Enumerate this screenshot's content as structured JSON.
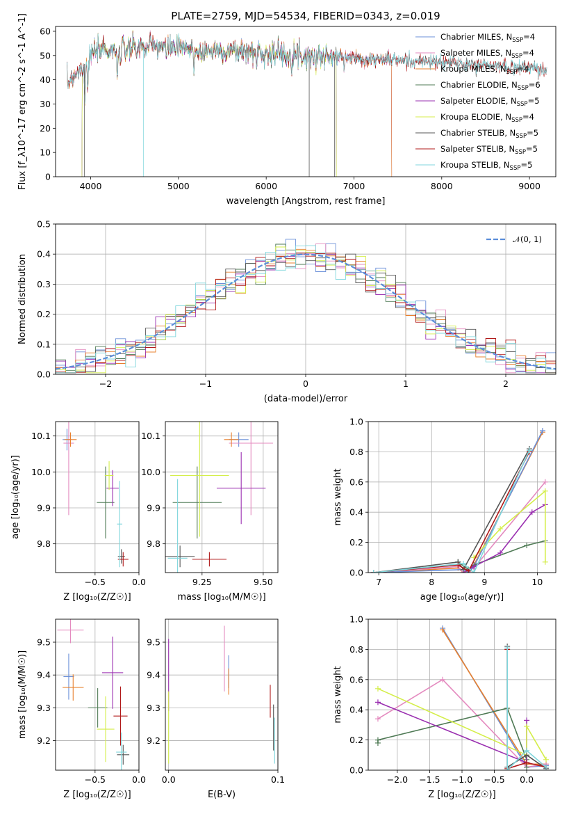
{
  "figure_title": "PLATE=2759, MJD=54534, FIBERID=0343, z=0.019",
  "colors": {
    "chabrier_miles": "#6a8fd8",
    "salpeter_miles": "#e48abf",
    "kroupa_miles": "#e8802e",
    "chabrier_elodie": "#4f7a55",
    "salpeter_elodie": "#9a2fb0",
    "kroupa_elodie": "#d4ee4a",
    "chabrier_stelib": "#555555",
    "salpeter_stelib": "#b01818",
    "kroupa_stelib": "#7fd6dc",
    "normal": "#5b8dd9"
  },
  "chart_data": [
    {
      "id": "spectrum",
      "type": "line",
      "title": "PLATE=2759, MJD=54534, FIBERID=0343, z=0.019",
      "xlabel": "wavelength [Angstrom, rest frame]",
      "ylabel": "Flux [f_λ10^-17 erg cm^-2 s^-1 A^-1]",
      "xlim": [
        3600,
        9300
      ],
      "ylim": [
        0,
        62
      ],
      "xticks": [
        "4000",
        "5000",
        "6000",
        "7000",
        "8000",
        "9000"
      ],
      "yticks": [
        "0",
        "10",
        "20",
        "30",
        "40",
        "50",
        "60"
      ],
      "grid": false,
      "legend_position": "top-right",
      "legend": [
        {
          "base": "Chabrier MILES, N",
          "sub": "SSP",
          "tail": "=4",
          "color_key": "chabrier_miles"
        },
        {
          "base": "Salpeter MILES, N",
          "sub": "SSP",
          "tail": "=4",
          "color_key": "salpeter_miles"
        },
        {
          "base": "Kroupa MILES, N",
          "sub": "SSP",
          "tail": "=4",
          "color_key": "kroupa_miles"
        },
        {
          "base": "Chabrier ELODIE, N",
          "sub": "SSP",
          "tail": "=6",
          "color_key": "chabrier_elodie"
        },
        {
          "base": "Salpeter ELODIE, N",
          "sub": "SSP",
          "tail": "=5",
          "color_key": "salpeter_elodie"
        },
        {
          "base": "Kroupa ELODIE, N",
          "sub": "SSP",
          "tail": "=4",
          "color_key": "kroupa_elodie"
        },
        {
          "base": "Chabrier STELIB, N",
          "sub": "SSP",
          "tail": "=5",
          "color_key": "chabrier_stelib"
        },
        {
          "base": "Salpeter STELIB, N",
          "sub": "SSP",
          "tail": "=5",
          "color_key": "salpeter_stelib"
        },
        {
          "base": "Kroupa STELIB, N",
          "sub": "SSP",
          "tail": "=5",
          "color_key": "kroupa_stelib"
        }
      ],
      "continuum_x": [
        3730,
        3800,
        3900,
        4000,
        4100,
        4300,
        4500,
        4800,
        5200,
        5600,
        6000,
        6500,
        7000,
        7500,
        8000,
        8500,
        9000,
        9200
      ],
      "continuum_y": [
        38,
        42,
        45,
        50,
        53,
        52,
        53,
        54,
        52,
        52,
        51,
        50,
        49,
        48,
        47,
        46,
        45,
        44
      ],
      "series": [
        {
          "color_key": "chabrier_miles",
          "x_range": [
            3730,
            7430
          ]
        },
        {
          "color_key": "salpeter_miles",
          "x_range": [
            3730,
            7430
          ]
        },
        {
          "color_key": "kroupa_miles",
          "x_range": [
            3730,
            7430
          ]
        },
        {
          "color_key": "chabrier_elodie",
          "x_range": [
            3900,
            6800
          ]
        },
        {
          "color_key": "salpeter_elodie",
          "x_range": [
            3900,
            6800
          ]
        },
        {
          "color_key": "kroupa_elodie",
          "x_range": [
            3900,
            6800
          ]
        },
        {
          "color_key": "chabrier_stelib",
          "x_range": [
            3730,
            9200
          ]
        },
        {
          "color_key": "salpeter_stelib",
          "x_range": [
            3730,
            9200
          ]
        },
        {
          "color_key": "kroupa_stelib",
          "x_range": [
            3730,
            9200
          ]
        }
      ]
    },
    {
      "id": "residuals",
      "type": "line",
      "xlabel": "(data-model)/error",
      "ylabel": "Normed distribution",
      "xlim": [
        -2.5,
        2.5
      ],
      "ylim": [
        0,
        0.5
      ],
      "xticks": [
        "−2",
        "−1",
        "0",
        "1",
        "2"
      ],
      "yticks": [
        "0.0",
        "0.1",
        "0.2",
        "0.3",
        "0.4",
        "0.5"
      ],
      "grid": true,
      "legend_position": "top-right",
      "normal_label": "𝒩(0, 1)",
      "bin_width": 0.1
    },
    {
      "id": "age_vs_z",
      "type": "scatter",
      "xlabel": "Z [log₁₀(Z/Z☉)]",
      "ylabel": "age  [log₁₀(age/yr)]",
      "xlim": [
        -0.95,
        0.0
      ],
      "ylim": [
        9.72,
        10.14
      ],
      "xticks": [
        "−0.5",
        "0.0"
      ],
      "ytick_values": [
        9.8,
        9.9,
        10.0,
        10.1
      ],
      "yticks": [
        "9.8",
        "9.9",
        "10.0",
        "10.1"
      ],
      "grid": true,
      "points": [
        {
          "x": -0.82,
          "xerr": 0.05,
          "y": 10.09,
          "yerr": 0.03,
          "color_key": "chabrier_miles"
        },
        {
          "x": -0.8,
          "xerr": 0.06,
          "y": 10.08,
          "yerr": 0.2,
          "color_key": "salpeter_miles"
        },
        {
          "x": -0.78,
          "xerr": 0.07,
          "y": 10.09,
          "yerr": 0.02,
          "color_key": "kroupa_miles"
        },
        {
          "x": -0.38,
          "xerr": 0.1,
          "y": 9.915,
          "yerr": 0.1,
          "color_key": "chabrier_elodie"
        },
        {
          "x": -0.3,
          "xerr": 0.07,
          "y": 9.955,
          "yerr": 0.05,
          "color_key": "salpeter_elodie"
        },
        {
          "x": -0.34,
          "xerr": 0.05,
          "y": 9.99,
          "yerr": 0.04,
          "color_key": "kroupa_elodie"
        },
        {
          "x": -0.2,
          "xerr": 0.04,
          "y": 9.765,
          "yerr": 0.02,
          "color_key": "chabrier_stelib"
        },
        {
          "x": -0.18,
          "xerr": 0.06,
          "y": 9.757,
          "yerr": 0.02,
          "color_key": "salpeter_stelib"
        },
        {
          "x": -0.22,
          "xerr": 0.03,
          "y": 9.855,
          "yerr": 0.12,
          "color_key": "kroupa_stelib"
        }
      ]
    },
    {
      "id": "age_vs_mass",
      "type": "scatter",
      "xlabel": "mass [log₁₀(M/M☉)]",
      "ylabel": "",
      "xlim": [
        9.1,
        9.56
      ],
      "ylim": [
        9.72,
        10.14
      ],
      "xticks": [
        "9.25",
        "9.50"
      ],
      "xtick_values": [
        9.25,
        9.5
      ],
      "ytick_values": [
        9.8,
        9.9,
        10.0,
        10.1
      ],
      "yticks": [
        "9.8",
        "9.9",
        "10.0",
        "10.1"
      ],
      "grid": true,
      "points": [
        {
          "x": 9.4,
          "xerr": 0.04,
          "y": 10.09,
          "yerr": 0.02,
          "color_key": "chabrier_miles"
        },
        {
          "x": 9.45,
          "xerr": 0.09,
          "y": 10.08,
          "yerr": 0.2,
          "color_key": "salpeter_miles"
        },
        {
          "x": 9.37,
          "xerr": 0.03,
          "y": 10.09,
          "yerr": 0.02,
          "color_key": "kroupa_miles"
        },
        {
          "x": 9.23,
          "xerr": 0.1,
          "y": 9.915,
          "yerr": 0.1,
          "color_key": "chabrier_elodie"
        },
        {
          "x": 9.41,
          "xerr": 0.1,
          "y": 9.955,
          "yerr": 0.1,
          "color_key": "salpeter_elodie"
        },
        {
          "x": 9.24,
          "xerr": 0.12,
          "y": 9.99,
          "yerr": 0.17,
          "color_key": "kroupa_elodie"
        },
        {
          "x": 9.16,
          "xerr": 0.06,
          "y": 9.765,
          "yerr": 0.03,
          "color_key": "chabrier_stelib"
        },
        {
          "x": 9.28,
          "xerr": 0.07,
          "y": 9.757,
          "yerr": 0.02,
          "color_key": "salpeter_stelib"
        },
        {
          "x": 9.15,
          "xerr": 0.04,
          "y": 9.76,
          "yerr": 0.22,
          "color_key": "kroupa_stelib"
        }
      ]
    },
    {
      "id": "weight_vs_age",
      "type": "line",
      "xlabel": "age  [log₁₀(age/yr)]",
      "ylabel": "mass weight",
      "xlim": [
        6.8,
        10.35
      ],
      "ylim": [
        0.0,
        1.0
      ],
      "xticks": [
        "7",
        "8",
        "9",
        "10"
      ],
      "xtick_values": [
        7,
        8,
        9,
        10
      ],
      "yticks": [
        "0.0",
        "0.2",
        "0.4",
        "0.6",
        "0.8",
        "1.0"
      ],
      "ytick_values": [
        0.0,
        0.2,
        0.4,
        0.6,
        0.8,
        1.0
      ],
      "grid": true,
      "series": [
        {
          "color_key": "kroupa_miles",
          "x": [
            6.9,
            8.5,
            8.6,
            8.8,
            10.1
          ],
          "y": [
            0.0,
            0.03,
            0.0,
            0.05,
            0.93
          ]
        },
        {
          "color_key": "salpeter_miles",
          "x": [
            6.9,
            8.5,
            8.6,
            8.8,
            10.15
          ],
          "y": [
            0.0,
            0.04,
            0.0,
            0.03,
            0.6
          ]
        },
        {
          "color_key": "chabrier_miles",
          "x": [
            6.9,
            8.6,
            8.7,
            8.8,
            10.1
          ],
          "y": [
            0.0,
            0.02,
            0.0,
            0.04,
            0.94
          ]
        },
        {
          "color_key": "chabrier_elodie",
          "x": [
            8.5,
            8.7,
            8.8,
            9.8,
            10.15
          ],
          "y": [
            0.07,
            0.02,
            0.05,
            0.18,
            0.21
          ]
        },
        {
          "color_key": "salpeter_elodie",
          "x": [
            8.6,
            8.8,
            9.3,
            9.9,
            10.15
          ],
          "y": [
            0.0,
            0.04,
            0.13,
            0.4,
            0.45
          ]
        },
        {
          "color_key": "kroupa_elodie",
          "x": [
            8.8,
            9.3,
            10.15,
            10.15
          ],
          "y": [
            0.1,
            0.29,
            0.54,
            0.07
          ]
        },
        {
          "color_key": "chabrier_stelib",
          "x": [
            6.9,
            8.5,
            8.6,
            9.85
          ],
          "y": [
            0.0,
            0.07,
            0.02,
            0.82
          ]
        },
        {
          "color_key": "salpeter_stelib",
          "x": [
            6.9,
            8.5,
            8.7,
            9.85
          ],
          "y": [
            0.0,
            0.05,
            0.01,
            0.8
          ]
        },
        {
          "color_key": "kroupa_stelib",
          "x": [
            6.9,
            8.6,
            8.8,
            9.85
          ],
          "y": [
            0.0,
            0.06,
            0.0,
            0.81
          ]
        }
      ]
    },
    {
      "id": "mass_vs_z",
      "type": "scatter",
      "xlabel": "Z [log₁₀(Z/Z☉)]",
      "ylabel": "mass [log₁₀(M/M☉)]",
      "xlim": [
        -0.95,
        0.0
      ],
      "ylim": [
        9.11,
        9.57
      ],
      "xticks": [
        "−0.5",
        "0.0"
      ],
      "xtick_values": [
        -0.5,
        0.0
      ],
      "yticks": [
        "9.2",
        "9.3",
        "9.4",
        "9.5"
      ],
      "ytick_values": [
        9.2,
        9.3,
        9.4,
        9.5
      ],
      "grid": true,
      "points": [
        {
          "x": -0.8,
          "xerr": 0.06,
          "y": 9.395,
          "yerr": 0.07,
          "color_key": "chabrier_miles"
        },
        {
          "x": -0.78,
          "xerr": 0.15,
          "y": 9.537,
          "yerr": 0.04,
          "color_key": "salpeter_miles"
        },
        {
          "x": -0.75,
          "xerr": 0.12,
          "y": 9.362,
          "yerr": 0.04,
          "color_key": "kroupa_miles"
        },
        {
          "x": -0.47,
          "xerr": 0.11,
          "y": 9.3,
          "yerr": 0.06,
          "color_key": "chabrier_elodie"
        },
        {
          "x": -0.3,
          "xerr": 0.12,
          "y": 9.407,
          "yerr": 0.11,
          "color_key": "salpeter_elodie"
        },
        {
          "x": -0.38,
          "xerr": 0.1,
          "y": 9.235,
          "yerr": 0.1,
          "color_key": "kroupa_elodie"
        },
        {
          "x": -0.18,
          "xerr": 0.07,
          "y": 9.157,
          "yerr": 0.03,
          "color_key": "chabrier_stelib"
        },
        {
          "x": -0.21,
          "xerr": 0.08,
          "y": 9.275,
          "yerr": 0.09,
          "color_key": "salpeter_stelib"
        },
        {
          "x": -0.2,
          "xerr": 0.06,
          "y": 9.165,
          "yerr": 0.06,
          "color_key": "kroupa_stelib"
        }
      ]
    },
    {
      "id": "mass_vs_ebv",
      "type": "scatter",
      "xlabel": "E(B-V)",
      "ylabel": "",
      "xlim": [
        -0.003,
        0.1
      ],
      "ylim": [
        9.11,
        9.57
      ],
      "xticks": [
        "0.0",
        "0.1"
      ],
      "xtick_values": [
        0.0,
        0.1
      ],
      "yticks": [
        "9.2",
        "9.3",
        "9.4",
        "9.5"
      ],
      "ytick_values": [
        9.2,
        9.3,
        9.4,
        9.5
      ],
      "grid": true,
      "points": [
        {
          "x": 0.0,
          "xerr": 0,
          "y": 9.4,
          "yerr": 0.11,
          "color_key": "salpeter_elodie"
        },
        {
          "x": 0.0,
          "xerr": 0,
          "y": 9.24,
          "yerr": 0.11,
          "color_key": "kroupa_elodie"
        },
        {
          "x": 0.051,
          "xerr": 0,
          "y": 9.45,
          "yerr": 0.1,
          "color_key": "salpeter_miles"
        },
        {
          "x": 0.055,
          "xerr": 0,
          "y": 9.41,
          "yerr": 0.05,
          "color_key": "chabrier_miles"
        },
        {
          "x": 0.055,
          "xerr": 0,
          "y": 9.38,
          "yerr": 0.04,
          "color_key": "kroupa_miles"
        },
        {
          "x": 0.093,
          "xerr": 0,
          "y": 9.32,
          "yerr": 0.05,
          "color_key": "salpeter_stelib"
        },
        {
          "x": 0.096,
          "xerr": 0,
          "y": 9.24,
          "yerr": 0.07,
          "color_key": "chabrier_stelib"
        },
        {
          "x": 0.097,
          "xerr": 0,
          "y": 9.2,
          "yerr": 0.07,
          "color_key": "kroupa_stelib"
        }
      ]
    },
    {
      "id": "weight_vs_z",
      "type": "line",
      "xlabel": "Z [log₁₀(Z/Z☉)]",
      "ylabel": "mass weight",
      "xlim": [
        -2.45,
        0.45
      ],
      "ylim": [
        0.0,
        1.0
      ],
      "xticks": [
        "−2.0",
        "−1.5",
        "−1.0",
        "−0.5",
        "0.0"
      ],
      "xtick_values": [
        -2.0,
        -1.5,
        -1.0,
        -0.5,
        0.0
      ],
      "yticks": [
        "0.0",
        "0.2",
        "0.4",
        "0.6",
        "0.8",
        "1.0"
      ],
      "ytick_values": [
        0.0,
        0.2,
        0.4,
        0.6,
        0.8,
        1.0
      ],
      "grid": true,
      "series": [
        {
          "color_key": "chabrier_miles",
          "x": [
            -1.3,
            0.0,
            0.3
          ],
          "y": [
            0.94,
            0.02,
            0.03
          ]
        },
        {
          "color_key": "kroupa_miles",
          "x": [
            -1.3,
            0.0,
            0.3
          ],
          "y": [
            0.93,
            0.04,
            0.04
          ]
        },
        {
          "color_key": "salpeter_miles",
          "x": [
            -2.3,
            -1.3,
            0.0,
            0.3
          ],
          "y": [
            0.34,
            0.6,
            0.02,
            0.04
          ]
        },
        {
          "color_key": "chabrier_elodie",
          "x": [
            -2.3,
            -2.3,
            -0.3,
            0.0,
            0.0
          ],
          "y": [
            0.18,
            0.2,
            0.41,
            0.07,
            0.02
          ]
        },
        {
          "color_key": "salpeter_elodie",
          "x": [
            -2.3,
            0.0,
            0.0
          ],
          "y": [
            0.45,
            0.05,
            0.33
          ]
        },
        {
          "color_key": "kroupa_elodie",
          "x": [
            -2.3,
            0.0,
            0.0,
            0.3
          ],
          "y": [
            0.54,
            0.1,
            0.29,
            0.07
          ]
        },
        {
          "color_key": "chabrier_stelib",
          "x": [
            -0.3,
            -0.3,
            0.0,
            0.3
          ],
          "y": [
            0.82,
            0.02,
            0.1,
            0.01
          ]
        },
        {
          "color_key": "salpeter_stelib",
          "x": [
            -0.3,
            -0.3,
            0.0,
            0.3
          ],
          "y": [
            0.8,
            0.01,
            0.05,
            0.02
          ]
        },
        {
          "color_key": "kroupa_stelib",
          "x": [
            -0.3,
            -0.3,
            0.0,
            0.3
          ],
          "y": [
            0.81,
            0.0,
            0.13,
            0.02
          ]
        }
      ]
    }
  ]
}
